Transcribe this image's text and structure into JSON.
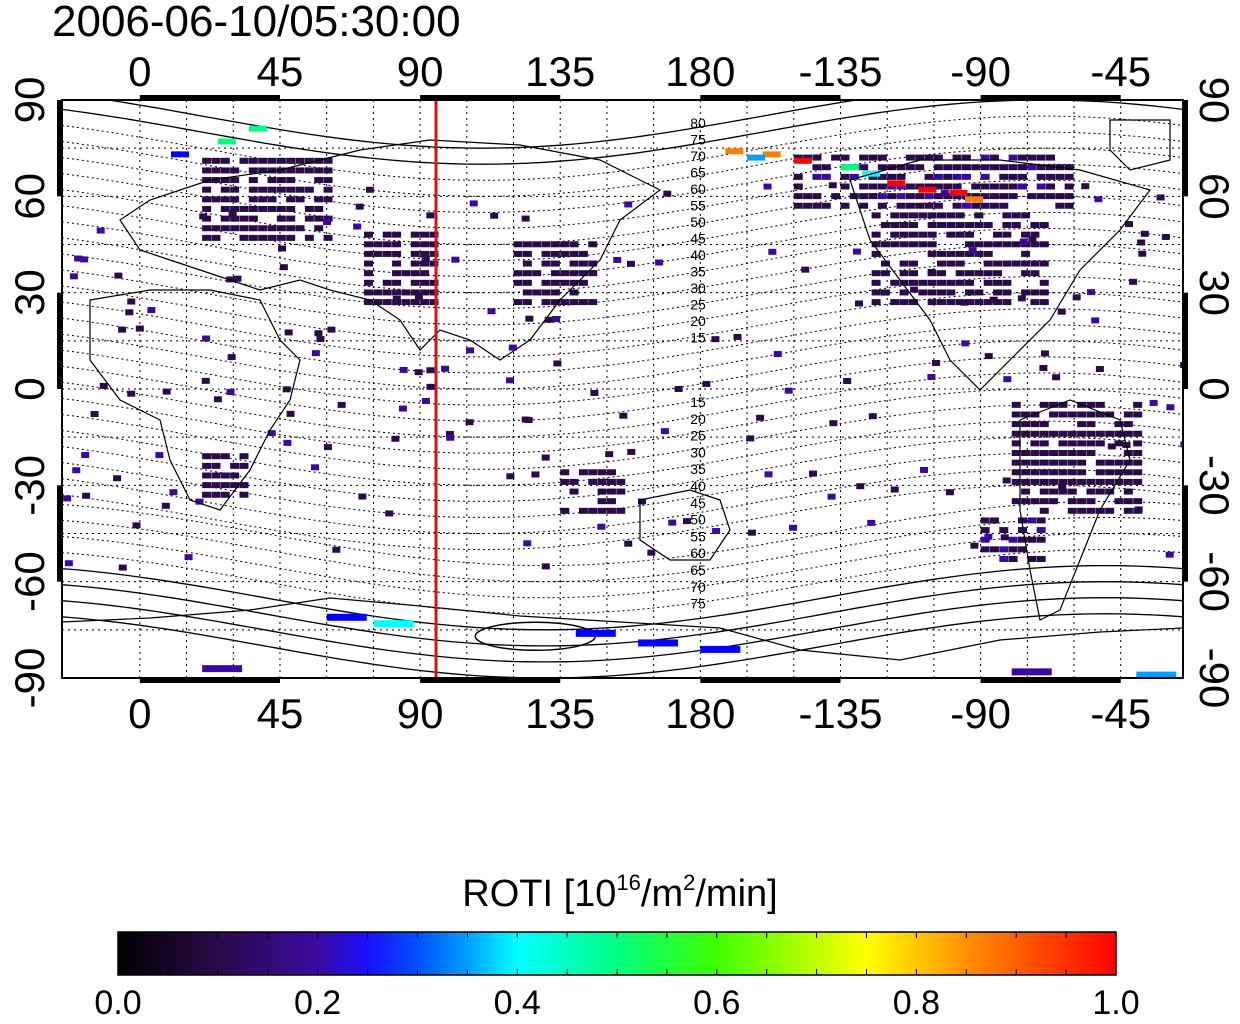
{
  "timestamp": "2006-06-10/05:30:00",
  "map": {
    "top_lon_labels": [
      "0",
      "45",
      "90",
      "135",
      "180",
      "-135",
      "-90",
      "-45"
    ],
    "bottom_lon_labels": [
      "0",
      "45",
      "90",
      "135",
      "180",
      "-135",
      "-90",
      "-45"
    ],
    "left_lat_labels": [
      "90",
      "60",
      "30",
      "0",
      "-30",
      "-60",
      "-90"
    ],
    "right_lat_labels": [
      "90",
      "60",
      "30",
      "0",
      "-30",
      "-60",
      "-90"
    ],
    "marker_line": {
      "longitude": 98,
      "color": "#dd1111"
    },
    "contour_labels_north": [
      "80",
      "75",
      "70",
      "65",
      "60",
      "55",
      "50",
      "45",
      "40",
      "35",
      "30",
      "25",
      "20",
      "15"
    ],
    "contour_labels_south": [
      "15",
      "20",
      "25",
      "30",
      "35",
      "40",
      "45",
      "50",
      "55",
      "60",
      "65",
      "70",
      "75"
    ]
  },
  "colorbar": {
    "title_main": "ROTI  [10",
    "title_exp1": "16",
    "title_mid": "/m",
    "title_exp2": "2",
    "title_end": "/min]",
    "tick_labels": [
      "0.0",
      "0.2",
      "0.4",
      "0.6",
      "0.8",
      "1.0"
    ],
    "range": [
      0.0,
      1.0
    ],
    "colormap": [
      "#000000",
      "#2a0a4a",
      "#3a0aa0",
      "#0000ff",
      "#00a0ff",
      "#00ffff",
      "#00ff80",
      "#40ff00",
      "#ffff00",
      "#ff8000",
      "#ff0000"
    ]
  }
}
